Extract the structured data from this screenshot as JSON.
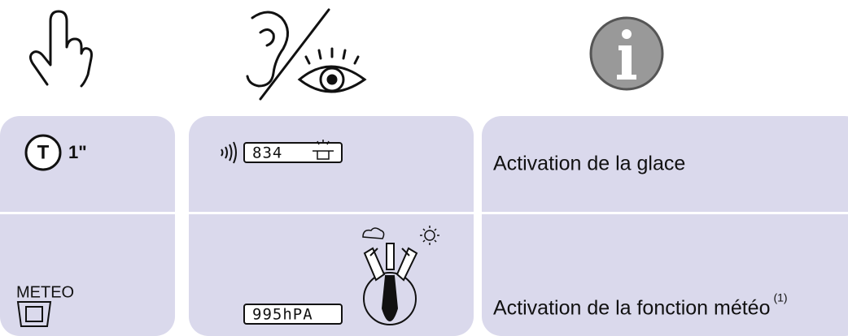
{
  "rows": [
    {
      "action": {
        "button": "T",
        "duration": "1\""
      },
      "display": {
        "lcd": "834"
      },
      "info": "Activation de la glace"
    },
    {
      "action": {
        "button": "METEO"
      },
      "display": {
        "lcd": "995hPA"
      },
      "info": "Activation de la fonction météo",
      "footnote": "(1)"
    }
  ]
}
